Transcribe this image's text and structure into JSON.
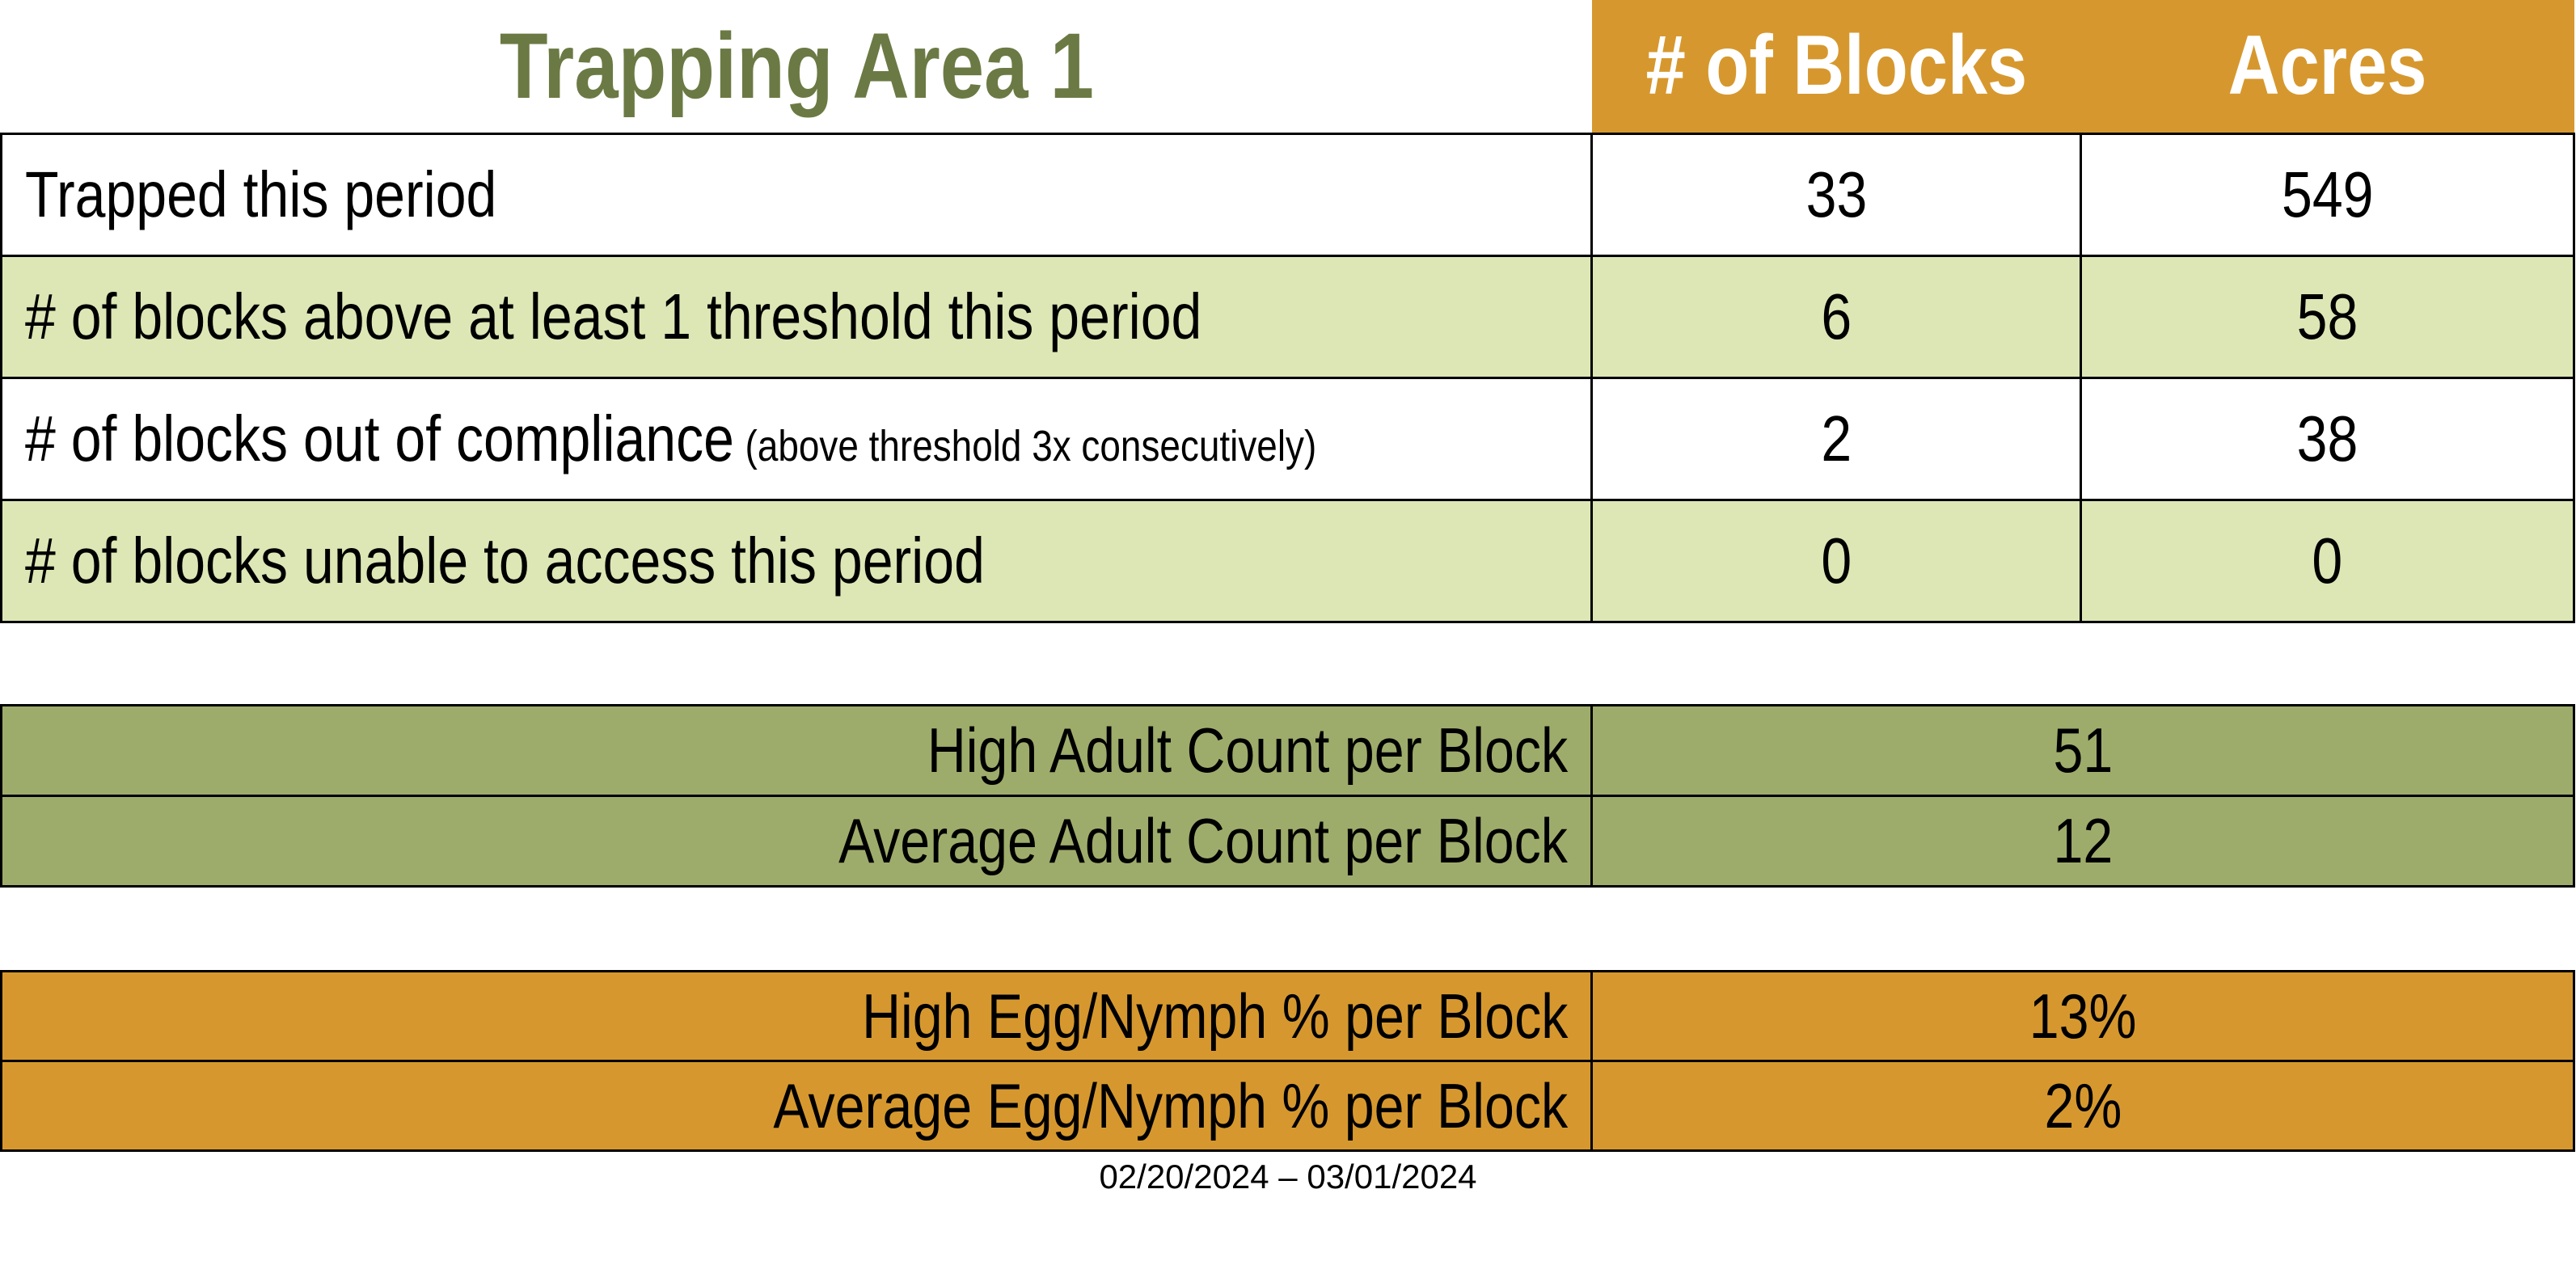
{
  "title": "Trapping Area 1",
  "colors": {
    "header_orange": "#D6982E",
    "row_light_green": "#DCE7B5",
    "adult_olive": "#9EAC6B",
    "title_green": "#6B7A44",
    "border_black": "#000000"
  },
  "main_table": {
    "columns": [
      "# of Blocks",
      "Acres"
    ],
    "rows": [
      {
        "label": "Trapped this period",
        "note": "",
        "blocks": "33",
        "acres": "549"
      },
      {
        "label": "# of blocks above at least 1 threshold this period",
        "note": "",
        "blocks": "6",
        "acres": "58"
      },
      {
        "label": "# of blocks out of compliance",
        "note": "(above threshold 3x consecutively)",
        "blocks": "2",
        "acres": "38"
      },
      {
        "label": "# of blocks unable to access this period",
        "note": "",
        "blocks": "0",
        "acres": "0"
      }
    ]
  },
  "adult_table": {
    "rows": [
      {
        "label": "High Adult Count per Block",
        "value": "51"
      },
      {
        "label": "Average Adult Count per Block",
        "value": "12"
      }
    ]
  },
  "egg_table": {
    "rows": [
      {
        "label": "High Egg/Nymph % per Block",
        "value": "13%"
      },
      {
        "label": "Average Egg/Nymph % per Block",
        "value": "2%"
      }
    ]
  },
  "date_range": "02/20/2024 – 03/01/2024"
}
